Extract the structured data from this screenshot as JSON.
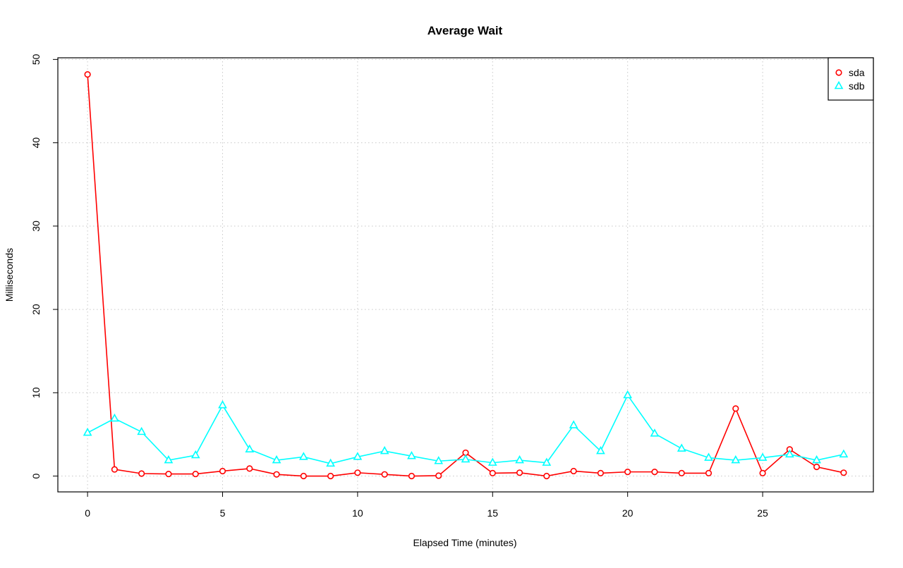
{
  "chart_data": {
    "type": "line",
    "title": "Average Wait",
    "xlabel": "Elapsed Time (minutes)",
    "ylabel": "Milliseconds",
    "xlim": [
      -1.1,
      29.1
    ],
    "ylim": [
      -1.9,
      50.2
    ],
    "xticks": [
      0,
      5,
      10,
      15,
      20,
      25
    ],
    "yticks": [
      0,
      10,
      20,
      30,
      40,
      50
    ],
    "grid": true,
    "legend_position": "top-right",
    "x": [
      0,
      1,
      2,
      3,
      4,
      5,
      6,
      7,
      8,
      9,
      10,
      11,
      12,
      13,
      14,
      15,
      16,
      17,
      18,
      19,
      20,
      21,
      22,
      23,
      24,
      25,
      26,
      27,
      28
    ],
    "series": [
      {
        "name": "sda",
        "color": "#ff0000",
        "marker": "circle",
        "values": [
          48.2,
          0.8,
          0.3,
          0.25,
          0.25,
          0.6,
          0.9,
          0.2,
          0.0,
          0.0,
          0.4,
          0.2,
          0.0,
          0.05,
          2.8,
          0.35,
          0.4,
          0.0,
          0.6,
          0.35,
          0.5,
          0.5,
          0.35,
          0.35,
          8.1,
          0.35,
          3.2,
          1.1,
          0.4
        ]
      },
      {
        "name": "sdb",
        "color": "#00ffff",
        "marker": "triangle",
        "values": [
          5.2,
          6.9,
          5.3,
          1.9,
          2.5,
          8.5,
          3.2,
          1.9,
          2.3,
          1.5,
          2.3,
          3.0,
          2.4,
          1.8,
          2.0,
          1.6,
          1.9,
          1.6,
          6.1,
          3.0,
          9.7,
          5.1,
          3.3,
          2.2,
          1.9,
          2.2,
          2.6,
          1.9,
          2.6
        ]
      }
    ]
  }
}
